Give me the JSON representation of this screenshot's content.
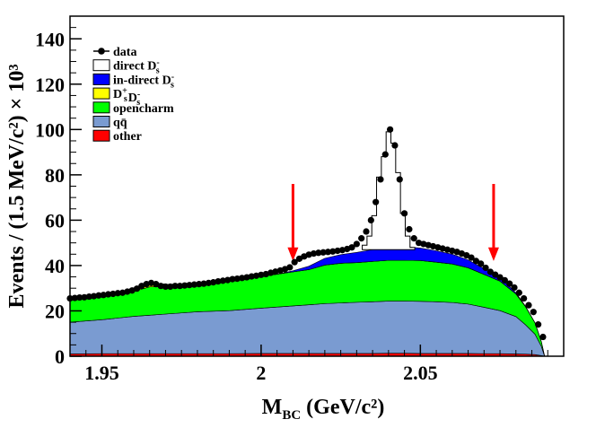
{
  "chart_data": {
    "type": "area",
    "title": "",
    "xlabel": "M_BC (GeV/c²)",
    "xlabel_main": "M",
    "xlabel_sub": "BC",
    "xlabel_rest": " (GeV/c²)",
    "ylabel": "Events / (1.5 MeV/c²) × 10³",
    "xlim": [
      1.94,
      2.095
    ],
    "ylim": [
      0,
      150
    ],
    "xticks": [
      1.95,
      2.0,
      2.05
    ],
    "xtick_labels": [
      "1.95",
      "2",
      "2.05"
    ],
    "yticks": [
      0,
      20,
      40,
      60,
      80,
      100,
      120,
      140
    ],
    "ytick_labels": [
      "0",
      "20",
      "40",
      "60",
      "80",
      "100",
      "120",
      "140"
    ],
    "legend_position": "top-left",
    "legend": [
      {
        "label": "data",
        "kind": "marker",
        "color": "#000000"
      },
      {
        "label": "direct D",
        "sup": "-",
        "sub": "s",
        "kind": "box",
        "color": "#ffffff"
      },
      {
        "label": "in-direct D",
        "sup": "-",
        "sub": "s",
        "kind": "box",
        "color": "#0000ff"
      },
      {
        "label": "D",
        "sup": "+",
        "sub": "s",
        "label2": "D",
        "sup2": "-",
        "sub2": "s",
        "kind": "box",
        "color": "#ffff00"
      },
      {
        "label": "opencharm",
        "kind": "box",
        "color": "#00ff00"
      },
      {
        "label": "qq̄",
        "kind": "box",
        "color": "#7a9bd1"
      },
      {
        "label": "other",
        "kind": "box",
        "color": "#ff0000"
      }
    ],
    "signal_window": [
      2.01,
      2.073
    ],
    "x": [
      1.94,
      1.95,
      1.96,
      1.965,
      1.97,
      1.975,
      1.98,
      1.99,
      2.0,
      2.005,
      2.01,
      2.015,
      2.02,
      2.025,
      2.03,
      2.035,
      2.04,
      2.045,
      2.05,
      2.055,
      2.06,
      2.065,
      2.07,
      2.075,
      2.08,
      2.083,
      2.086,
      2.088,
      2.089
    ],
    "series": [
      {
        "name": "other",
        "color": "#ff0000",
        "values": [
          1.0,
          1.1,
          1.1,
          1.1,
          1.1,
          1.1,
          1.1,
          1.1,
          1.2,
          1.2,
          1.2,
          1.2,
          1.2,
          1.2,
          1.2,
          1.2,
          1.3,
          1.3,
          1.2,
          1.2,
          1.2,
          1.2,
          1.1,
          1.1,
          1.0,
          0.9,
          0.7,
          0.3,
          0
        ]
      },
      {
        "name": "qq̄",
        "color": "#7a9bd1",
        "values": [
          14,
          15,
          16.5,
          17,
          17.5,
          18,
          18.5,
          19,
          20,
          20.5,
          21,
          21.5,
          22,
          22.3,
          22.6,
          22.8,
          23,
          23,
          23,
          22.8,
          22.5,
          21.8,
          20.5,
          19,
          16.5,
          13,
          9,
          4,
          0
        ]
      },
      {
        "name": "opencharm",
        "color": "#00ff00",
        "values": [
          10,
          10.5,
          11,
          12.5,
          12,
          12,
          12.5,
          13,
          14,
          14.5,
          15,
          15.5,
          17,
          17.5,
          17.5,
          17.8,
          18,
          18,
          18,
          17.5,
          17,
          16,
          14.5,
          13,
          10,
          8,
          5,
          2,
          0
        ]
      },
      {
        "name": "D+sD-s",
        "color": "#ffff00",
        "values": [
          0,
          0,
          0.2,
          1.5,
          1.2,
          0.2,
          0,
          0,
          0,
          0,
          0,
          0,
          0,
          0,
          0,
          0,
          0,
          0,
          0,
          0,
          0,
          0,
          0,
          0,
          0,
          0,
          0,
          0,
          0
        ]
      },
      {
        "name": "in-direct D-s",
        "color": "#0000ff",
        "values": [
          0,
          0,
          0,
          0,
          0,
          0,
          0,
          0,
          0,
          0,
          0.5,
          1.5,
          3,
          3.8,
          4.5,
          5.2,
          6,
          6,
          5.5,
          5,
          4.3,
          3.5,
          2.5,
          1.5,
          0.5,
          0.2,
          0,
          0,
          0
        ]
      }
    ],
    "direct_total": {
      "x": [
        2.0325,
        2.034,
        2.0355,
        2.037,
        2.0385,
        2.04,
        2.0415,
        2.043,
        2.0445,
        2.046,
        2.0475
      ],
      "values": [
        49,
        53,
        62,
        79,
        88,
        99,
        94,
        81,
        63,
        53,
        48
      ]
    },
    "data_points": {
      "x": [
        1.94,
        1.9415,
        1.943,
        1.9445,
        1.946,
        1.9475,
        1.949,
        1.9505,
        1.952,
        1.9535,
        1.955,
        1.9565,
        1.958,
        1.9595,
        1.961,
        1.9625,
        1.964,
        1.9655,
        1.967,
        1.9685,
        1.97,
        1.9715,
        1.973,
        1.9745,
        1.976,
        1.9775,
        1.979,
        1.9805,
        1.982,
        1.9835,
        1.985,
        1.9865,
        1.988,
        1.9895,
        1.991,
        1.9925,
        1.994,
        1.9955,
        1.997,
        1.9985,
        2.0,
        2.0015,
        2.003,
        2.0045,
        2.006,
        2.0075,
        2.009,
        2.0105,
        2.012,
        2.0135,
        2.015,
        2.0165,
        2.018,
        2.0195,
        2.021,
        2.0225,
        2.024,
        2.0255,
        2.027,
        2.0285,
        2.03,
        2.0315,
        2.033,
        2.0345,
        2.036,
        2.0375,
        2.039,
        2.0405,
        2.042,
        2.0435,
        2.045,
        2.0465,
        2.048,
        2.0495,
        2.051,
        2.0525,
        2.054,
        2.0555,
        2.057,
        2.0585,
        2.06,
        2.0615,
        2.063,
        2.0645,
        2.066,
        2.0675,
        2.069,
        2.0705,
        2.072,
        2.0735,
        2.075,
        2.0765,
        2.078,
        2.0795,
        2.081,
        2.0825,
        2.084,
        2.0855,
        2.087,
        2.0885
      ],
      "values": [
        25.5,
        25.7,
        25.9,
        26,
        26.3,
        26.5,
        26.8,
        27,
        27.3,
        27.5,
        27.8,
        28,
        28.5,
        29,
        29.8,
        31,
        31.8,
        32.3,
        31.8,
        31,
        30.7,
        30.7,
        31,
        31,
        31.2,
        31.4,
        31.6,
        31.8,
        32,
        32.3,
        32.6,
        33,
        33.3,
        33.6,
        34,
        34.2,
        34.5,
        34.8,
        35.2,
        35.5,
        35.9,
        36.2,
        36.8,
        37.3,
        37.8,
        38.4,
        39.2,
        41.5,
        43,
        44,
        44.8,
        45.3,
        45.6,
        45.8,
        46,
        46.2,
        46.5,
        46.8,
        47.3,
        48,
        49.5,
        52,
        55,
        60,
        68,
        78,
        89,
        100,
        93,
        78,
        63,
        56,
        52,
        50,
        49.5,
        49,
        48.5,
        48,
        47.5,
        47,
        46.5,
        46,
        45.3,
        44.5,
        43.5,
        42,
        40.8,
        39,
        37.2,
        36,
        34.8,
        33.5,
        32,
        30.3,
        28,
        25.5,
        22.5,
        19.5,
        14,
        8.5
      ]
    }
  }
}
